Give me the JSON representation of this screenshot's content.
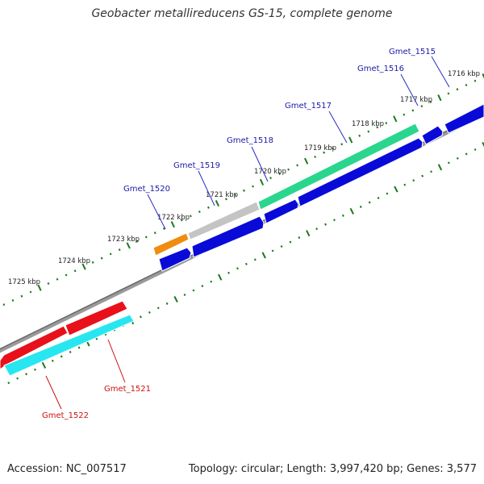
{
  "title": "Geobacter metallireducens GS-15, complete genome",
  "footer": {
    "accession": "Accession: NC_007517",
    "summary": "Topology: circular; Length: 3,997,420 bp; Genes: 3,577"
  },
  "colors": {
    "backbone": "#7a7a7a",
    "ticks": "#1a7a1a",
    "label_forward": "#1a1aa8",
    "label_reverse": "#cc1111"
  },
  "scale": {
    "labels": [
      "1716 kbp",
      "1717 kbp",
      "1718 kbp",
      "1719 kbp",
      "1720 kbp",
      "1721 kbp",
      "1722 kbp",
      "1723 kbp",
      "1724 kbp",
      "1725 kbp"
    ]
  },
  "genes": {
    "forward_labels": [
      "Gmet_1515",
      "Gmet_1516",
      "Gmet_1517",
      "Gmet_1518",
      "Gmet_1519",
      "Gmet_1520"
    ],
    "reverse_labels": [
      "Gmet_1521",
      "Gmet_1522"
    ]
  }
}
